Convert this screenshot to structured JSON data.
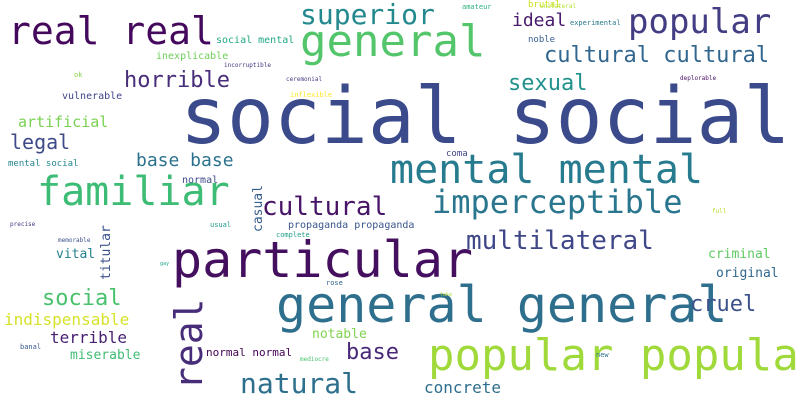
{
  "words": [
    {
      "text": "social social",
      "color": "#3b4a8a"
    },
    {
      "text": "particular",
      "color": "#440f5e"
    },
    {
      "text": "general general",
      "color": "#2f6f8e"
    },
    {
      "text": "popular popular",
      "color": "#9fd93a"
    },
    {
      "text": "mental mental",
      "color": "#277b8e"
    },
    {
      "text": "familiar",
      "color": "#3cbc74"
    },
    {
      "text": "general",
      "color": "#53c56b"
    },
    {
      "text": "real real",
      "color": "#44095c"
    },
    {
      "text": "popular",
      "color": "#433d84"
    },
    {
      "text": "imperceptible",
      "color": "#2a768e"
    },
    {
      "text": "superior",
      "color": "#23898e"
    },
    {
      "text": "real",
      "color": "#472c7a"
    },
    {
      "text": "multilateral",
      "color": "#3f4788"
    },
    {
      "text": "cultural",
      "color": "#481467"
    },
    {
      "text": "natural",
      "color": "#2d708e"
    },
    {
      "text": "cultural cultural",
      "color": "#31668e"
    },
    {
      "text": "horrible",
      "color": "#472d7b"
    },
    {
      "text": "sexual",
      "color": "#21918c"
    },
    {
      "text": "base",
      "color": "#482878"
    },
    {
      "text": "cruel",
      "color": "#3b528b"
    },
    {
      "text": "social",
      "color": "#4ac16d"
    },
    {
      "text": "legal",
      "color": "#3e4a89"
    },
    {
      "text": "ideal",
      "color": "#481a6c"
    },
    {
      "text": "base base",
      "color": "#2c728e"
    },
    {
      "text": "concrete",
      "color": "#2e6e8e"
    },
    {
      "text": "artificial",
      "color": "#7ad151"
    },
    {
      "text": "indispensable",
      "color": "#d6e22b"
    },
    {
      "text": "terrible",
      "color": "#482173"
    },
    {
      "text": "miserable",
      "color": "#3fbc73"
    },
    {
      "text": "vital",
      "color": "#26828e"
    },
    {
      "text": "criminal",
      "color": "#5ec962"
    },
    {
      "text": "original",
      "color": "#31688e"
    },
    {
      "text": "notable",
      "color": "#7fd34e"
    },
    {
      "text": "titular",
      "color": "#3b518b"
    },
    {
      "text": "casual",
      "color": "#35608d"
    },
    {
      "text": "normal normal",
      "color": "#440154"
    },
    {
      "text": "propaganda propaganda",
      "color": "#39568c"
    },
    {
      "text": "vulnerable",
      "color": "#414487"
    },
    {
      "text": "normal",
      "color": "#3e4c8a"
    },
    {
      "text": "inexplicable",
      "color": "#6ece58"
    },
    {
      "text": "social mental",
      "color": "#22a884"
    },
    {
      "text": "noble",
      "color": "#355f8d"
    },
    {
      "text": "mental social",
      "color": "#25858e"
    },
    {
      "text": "coma",
      "color": "#414487"
    },
    {
      "text": "brutal",
      "color": "#cde11d"
    },
    {
      "text": "amateur",
      "color": "#2db27d"
    },
    {
      "text": "experimental",
      "color": "#2a788e"
    },
    {
      "text": "unilateral",
      "color": "#b5de2b"
    },
    {
      "text": "incorruptible",
      "color": "#46337f"
    },
    {
      "text": "ceremonial",
      "color": "#433e85"
    },
    {
      "text": "deplorable",
      "color": "#471063"
    },
    {
      "text": "inflexible",
      "color": "#fde725"
    },
    {
      "text": "complete",
      "color": "#1fa188"
    },
    {
      "text": "usual",
      "color": "#1e9b8a"
    },
    {
      "text": "memorable",
      "color": "#3b518b"
    },
    {
      "text": "precise",
      "color": "#443a83"
    },
    {
      "text": "ok",
      "color": "#86d549"
    },
    {
      "text": "full",
      "color": "#b8de29"
    },
    {
      "text": "rose",
      "color": "#34618d"
    },
    {
      "text": "banal",
      "color": "#38598c"
    },
    {
      "text": "new",
      "color": "#2c738e"
    },
    {
      "text": "mediocre",
      "color": "#4ac16d"
    },
    {
      "text": "gay",
      "color": "#21a585"
    },
    {
      "text": "fake",
      "color": "#addc30"
    }
  ]
}
